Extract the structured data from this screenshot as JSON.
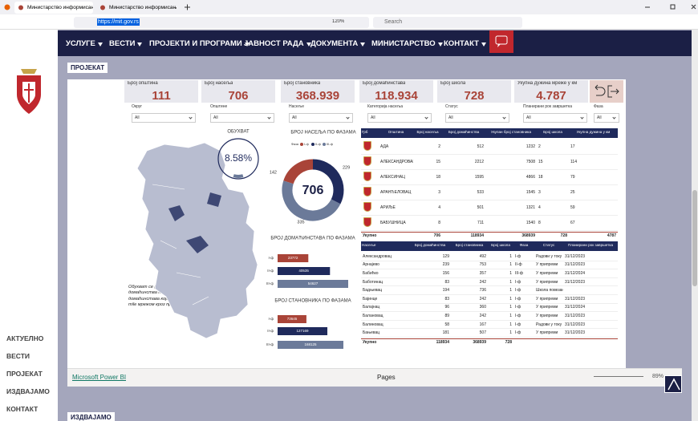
{
  "browser": {
    "tabs": [
      "Министарство информисањ",
      "Министарство информисањ"
    ],
    "url": "https://mit.gov.rs",
    "zoom": "120%",
    "search": "Search"
  },
  "nav": [
    "УСЛУГЕ",
    "ВЕСТИ",
    "ПРОЈЕКТИ И ПРОГРАМИ",
    "ЈАВНОСТ РАДА",
    "ДОКУМЕНТА",
    "МИНИСТАРСТВО",
    "КОНТАКТ"
  ],
  "sidebar": [
    "АКТУЕЛНО",
    "ВЕСТИ",
    "ПРОЈЕКАТ",
    "ИЗДВАЈАМО",
    "КОНТАКТ"
  ],
  "sections": {
    "project": "ПРОЈЕКАТ",
    "featured": "ИЗДВАЈАМО"
  },
  "kpis": [
    {
      "label": "Број општина",
      "value": "111"
    },
    {
      "label": "Број насеља",
      "value": "706"
    },
    {
      "label": "Број становника",
      "value": "368.939"
    },
    {
      "label": "Број домаћинстава",
      "value": "118.934"
    },
    {
      "label": "Број школа",
      "value": "728"
    },
    {
      "label": "Укупна дужина мреже у км",
      "value": "4.787"
    }
  ],
  "filters": [
    {
      "label": "Округ",
      "value": "All"
    },
    {
      "label": "Општине",
      "value": "All"
    },
    {
      "label": "Насеље",
      "value": "All"
    },
    {
      "label": "Категорија насеља",
      "value": "All"
    },
    {
      "label": "Статус",
      "value": "All"
    },
    {
      "label": "Планирани рок завршетка",
      "value": "All"
    },
    {
      "label": "Фаза",
      "value": "All"
    }
  ],
  "note": "Обухват се рачуна на основу укупног броја домаћинства на општинама и броја домаћинстава која ће бити покривена mid-mile мрежом кроз пројекат.",
  "chart_data": [
    {
      "type": "gauge",
      "title": "ОБУХВАТ",
      "value": 8.58,
      "value_label": "8.58%",
      "ylim": [
        0,
        100
      ],
      "color": "#1f2a5c"
    },
    {
      "type": "donut",
      "title": "БРОЈ НАСЕЉА ПО ФАЗАМА",
      "legend_title": "Фаза",
      "categories": [
        "I-ф",
        "II-ф",
        "III-ф"
      ],
      "values": [
        142,
        229,
        335
      ],
      "colors": [
        "#a94438",
        "#1f2a5c",
        "#6b7a99"
      ],
      "center_label": "706"
    },
    {
      "type": "bar",
      "orientation": "horizontal",
      "title": "БРОЈ ДОМАЋИНСТАВА ПО ФАЗАМА",
      "categories": [
        "I-ф",
        "II-ф",
        "III-ф"
      ],
      "values": [
        23772,
        40535,
        54627
      ],
      "colors": [
        "#a94438",
        "#1f2a5c",
        "#6b7a99"
      ]
    },
    {
      "type": "bar",
      "orientation": "horizontal",
      "title": "БРОЈ СТАНОВНИКА ПО ФАЗАМА",
      "categories": [
        "I-ф",
        "II-ф",
        "III-ф"
      ],
      "values": [
        73645,
        127169,
        168125
      ],
      "colors": [
        "#a94438",
        "#1f2a5c",
        "#6b7a99"
      ]
    }
  ],
  "table1": {
    "headers": [
      "Грб",
      "Општина",
      "Број насеља",
      "Број домаћинства",
      "Укупан број становника",
      "Број школа",
      "Укупна дужина у км"
    ],
    "rows": [
      [
        "АДА",
        "2",
        "512",
        "1232",
        "2",
        "17"
      ],
      [
        "АЛЕКСАНДРОВАЦ",
        "15",
        "2212",
        "7508",
        "15",
        "114"
      ],
      [
        "АЛЕКСИНАЦ",
        "18",
        "1595",
        "4866",
        "18",
        "79"
      ],
      [
        "АРАНЂЕЛОВАЦ",
        "3",
        "533",
        "1545",
        "3",
        "25"
      ],
      [
        "АРИЉЕ",
        "4",
        "501",
        "1321",
        "4",
        "59"
      ],
      [
        "БАБУШНИЦА",
        "8",
        "711",
        "1540",
        "8",
        "67"
      ]
    ],
    "total": [
      "Укупно",
      "706",
      "118934",
      "368939",
      "728",
      "4787"
    ]
  },
  "table2": {
    "headers": [
      "Насеље",
      "Број домаћинства",
      "Број становника",
      "Број школа",
      "Фаза",
      "Статус",
      "Планирани рок завршетка"
    ],
    "rows": [
      [
        "Александровац",
        "129",
        "492",
        "1",
        "I-ф",
        "Радови у току",
        "31/12/2023"
      ],
      [
        "Арнајево",
        "239",
        "753",
        "1",
        "II-ф",
        "У припреми",
        "31/12/2023"
      ],
      [
        "Бабићко",
        "156",
        "357",
        "1",
        "III-ф",
        "У припреми",
        "31/12/2024"
      ],
      [
        "Баботинац",
        "83",
        "242",
        "1",
        "I-ф",
        "У припреми",
        "31/12/2023"
      ],
      [
        "Бадњевац",
        "194",
        "736",
        "1",
        "I-ф",
        "Школа повезана"
      ],
      [
        "Бајинце",
        "83",
        "242",
        "1",
        "I-ф",
        "У припреми",
        "31/12/2023"
      ],
      [
        "Балајнац",
        "96",
        "360",
        "1",
        "I-ф",
        "У припреми",
        "31/12/2024"
      ],
      [
        "Балановац",
        "89",
        "242",
        "1",
        "I-ф",
        "У припреми",
        "31/12/2023"
      ],
      [
        "Балиновац",
        "58",
        "167",
        "1",
        "I-ф",
        "Радови у току",
        "31/12/2023"
      ],
      [
        "Бањевац",
        "181",
        "507",
        "1",
        "I-ф",
        "У припреми",
        "31/12/2023"
      ]
    ],
    "total": [
      "Укупно",
      "118934",
      "368939",
      "728"
    ]
  },
  "footer": {
    "brand": "Microsoft Power BI",
    "pages": "Pages",
    "zoom": "89%"
  }
}
